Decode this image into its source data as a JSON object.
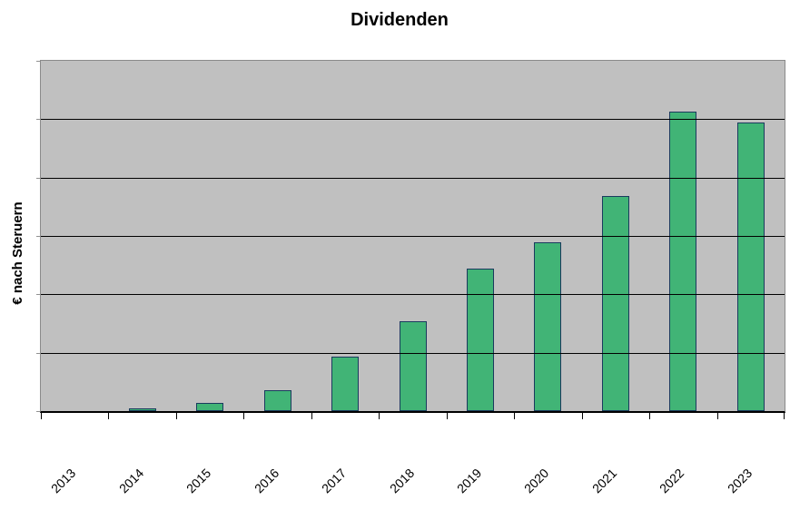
{
  "chart": {
    "title": "Dividenden",
    "ylabel": "€ nach Steruern"
  },
  "chart_data": {
    "type": "bar",
    "title": "Dividenden",
    "xlabel": "",
    "ylabel": "€ nach Steruern",
    "categories": [
      "2013",
      "2014",
      "2015",
      "2016",
      "2017",
      "2018",
      "2019",
      "2020",
      "2021",
      "2022",
      "2023"
    ],
    "values": [
      0,
      0.05,
      0.14,
      0.36,
      0.93,
      1.54,
      2.44,
      2.89,
      3.68,
      5.13,
      4.94
    ],
    "value_units": "gridline divisions (y axis has no numeric tick labels; plot height spans 6 equal gridline divisions)",
    "ylim": [
      0,
      6
    ],
    "y_gridline_count": 6,
    "grid": "horizontal",
    "legend": "none",
    "x_label_rotation_deg": -45,
    "colors": {
      "bar_fill": "#41b476",
      "bar_border": "#1a3a5e",
      "plot_background": "#c0c0c0",
      "gridline": "#000000",
      "plot_border": "#8a8a8a",
      "axis_line": "#000000",
      "text": "#000000",
      "page_background": "#ffffff"
    }
  }
}
